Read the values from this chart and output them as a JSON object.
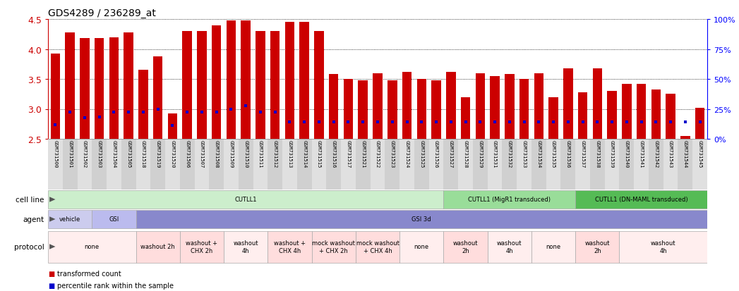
{
  "title": "GDS4289 / 236289_at",
  "samples": [
    "GSM731500",
    "GSM731501",
    "GSM731502",
    "GSM731503",
    "GSM731504",
    "GSM731505",
    "GSM731518",
    "GSM731519",
    "GSM731520",
    "GSM731506",
    "GSM731507",
    "GSM731508",
    "GSM731509",
    "GSM731510",
    "GSM731511",
    "GSM731512",
    "GSM731513",
    "GSM731514",
    "GSM731515",
    "GSM731516",
    "GSM731517",
    "GSM731521",
    "GSM731522",
    "GSM731523",
    "GSM731524",
    "GSM731525",
    "GSM731526",
    "GSM731527",
    "GSM731528",
    "GSM731529",
    "GSM731531",
    "GSM731532",
    "GSM731533",
    "GSM731534",
    "GSM731535",
    "GSM731536",
    "GSM731537",
    "GSM731538",
    "GSM731539",
    "GSM731540",
    "GSM731541",
    "GSM731542",
    "GSM731543",
    "GSM731544",
    "GSM731545"
  ],
  "bar_heights": [
    3.92,
    4.28,
    4.18,
    4.18,
    4.2,
    4.28,
    3.65,
    3.88,
    2.92,
    4.3,
    4.3,
    4.4,
    4.48,
    4.48,
    4.3,
    4.3,
    4.45,
    4.45,
    4.3,
    3.58,
    3.5,
    3.48,
    3.6,
    3.48,
    3.62,
    3.5,
    3.48,
    3.62,
    3.2,
    3.6,
    3.55,
    3.58,
    3.5,
    3.6,
    3.2,
    3.68,
    3.28,
    3.68,
    3.3,
    3.42,
    3.42,
    3.32,
    3.25,
    2.55,
    3.02
  ],
  "percentile_y": [
    2.73,
    2.95,
    2.85,
    2.87,
    2.95,
    2.95,
    2.95,
    3.0,
    2.72,
    2.95,
    2.95,
    2.95,
    3.0,
    3.05,
    2.95,
    2.95,
    2.78,
    2.78,
    2.78,
    2.78,
    2.78,
    2.78,
    2.78,
    2.78,
    2.78,
    2.78,
    2.78,
    2.78,
    2.78,
    2.78,
    2.78,
    2.78,
    2.78,
    2.78,
    2.78,
    2.78,
    2.78,
    2.78,
    2.78,
    2.78,
    2.78,
    2.78,
    2.78,
    2.78,
    2.78
  ],
  "ylim": [
    2.5,
    4.5
  ],
  "yticks": [
    2.5,
    3.0,
    3.5,
    4.0,
    4.5
  ],
  "bar_color": "#CC0000",
  "percentile_color": "#0000CC",
  "background_color": "#ffffff",
  "cell_line_groups": [
    {
      "label": "CUTLL1",
      "start": 0,
      "end": 27,
      "color": "#cceecc"
    },
    {
      "label": "CUTLL1 (MigR1 transduced)",
      "start": 27,
      "end": 36,
      "color": "#99dd99"
    },
    {
      "label": "CUTLL1 (DN-MAML transduced)",
      "start": 36,
      "end": 45,
      "color": "#55bb55"
    }
  ],
  "agent_groups": [
    {
      "label": "vehicle",
      "start": 0,
      "end": 3,
      "color": "#ccccee"
    },
    {
      "label": "GSI",
      "start": 3,
      "end": 6,
      "color": "#bbbbee"
    },
    {
      "label": "GSI 3d",
      "start": 6,
      "end": 45,
      "color": "#8888cc"
    }
  ],
  "protocol_groups": [
    {
      "label": "none",
      "start": 0,
      "end": 6,
      "color": "#ffeeee"
    },
    {
      "label": "washout 2h",
      "start": 6,
      "end": 9,
      "color": "#ffdddd"
    },
    {
      "label": "washout +\nCHX 2h",
      "start": 9,
      "end": 12,
      "color": "#ffdddd"
    },
    {
      "label": "washout\n4h",
      "start": 12,
      "end": 15,
      "color": "#ffeeee"
    },
    {
      "label": "washout +\nCHX 4h",
      "start": 15,
      "end": 18,
      "color": "#ffdddd"
    },
    {
      "label": "mock washout\n+ CHX 2h",
      "start": 18,
      "end": 21,
      "color": "#ffdddd"
    },
    {
      "label": "mock washout\n+ CHX 4h",
      "start": 21,
      "end": 24,
      "color": "#ffdddd"
    },
    {
      "label": "none",
      "start": 24,
      "end": 27,
      "color": "#ffeeee"
    },
    {
      "label": "washout\n2h",
      "start": 27,
      "end": 30,
      "color": "#ffdddd"
    },
    {
      "label": "washout\n4h",
      "start": 30,
      "end": 33,
      "color": "#ffeeee"
    },
    {
      "label": "none",
      "start": 33,
      "end": 36,
      "color": "#ffeeee"
    },
    {
      "label": "washout\n2h",
      "start": 36,
      "end": 39,
      "color": "#ffdddd"
    },
    {
      "label": "washout\n4h",
      "start": 39,
      "end": 45,
      "color": "#ffeeee"
    }
  ],
  "right_yticks": [
    0,
    25,
    50,
    75,
    100
  ],
  "right_ylabels": [
    "0%",
    "25%",
    "50%",
    "75%",
    "100%"
  ]
}
